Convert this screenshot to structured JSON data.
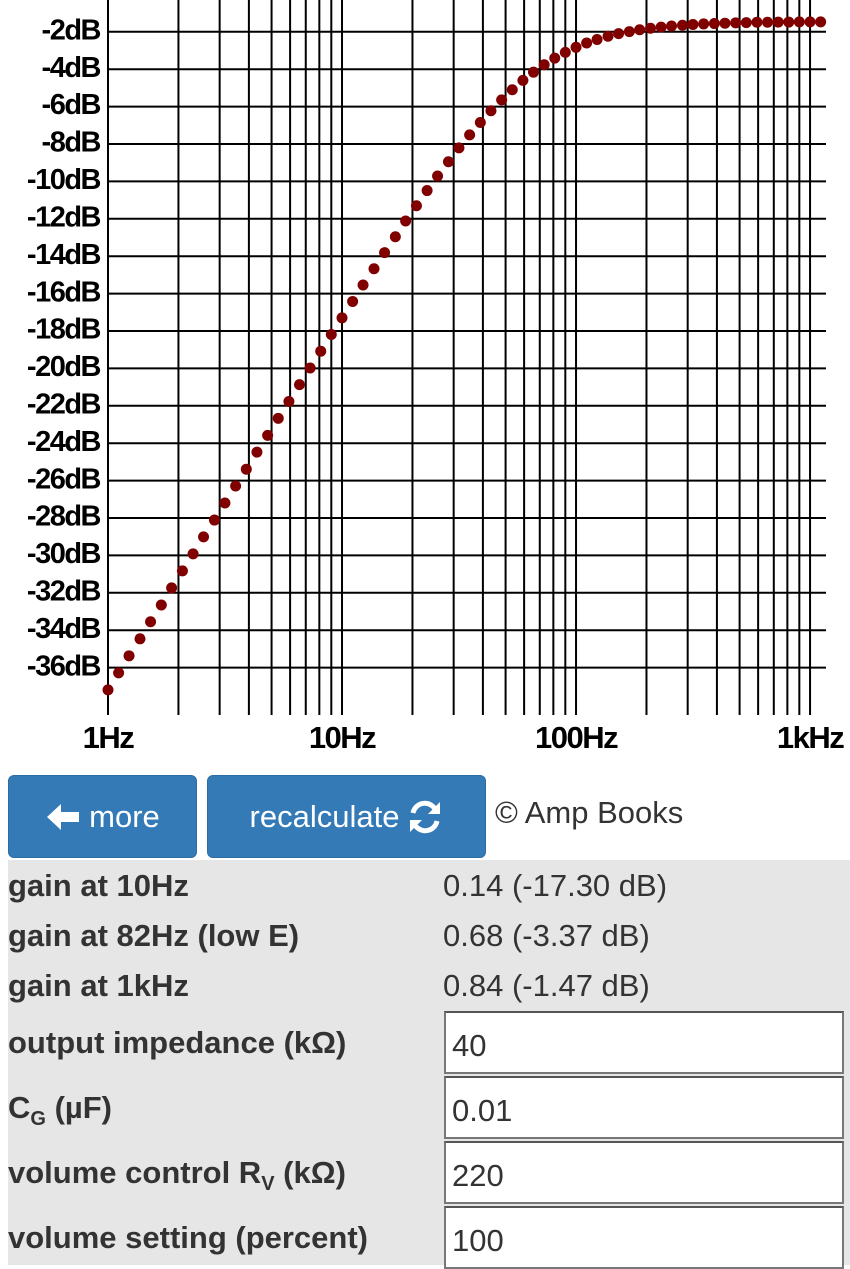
{
  "chart_data": {
    "type": "scatter",
    "log_x": true,
    "grid": true,
    "color": "#800000",
    "xlim": [
      1,
      1170
    ],
    "ylim": [
      -38,
      -0.3
    ],
    "xticks": [
      {
        "value": 1,
        "label": "1Hz"
      },
      {
        "value": 10,
        "label": "10Hz"
      },
      {
        "value": 100,
        "label": "100Hz"
      },
      {
        "value": 1000,
        "label": "1kHz"
      }
    ],
    "xminorticks": [
      2,
      3,
      4,
      5,
      6,
      7,
      8,
      9,
      20,
      30,
      40,
      50,
      60,
      70,
      80,
      90,
      200,
      300,
      400,
      500,
      600,
      700,
      800,
      900
    ],
    "yticks": [
      {
        "value": -2,
        "label": "-2dB"
      },
      {
        "value": -4,
        "label": "-4dB"
      },
      {
        "value": -6,
        "label": "-6dB"
      },
      {
        "value": -8,
        "label": "-8dB"
      },
      {
        "value": -10,
        "label": "-10dB"
      },
      {
        "value": -12,
        "label": "-12dB"
      },
      {
        "value": -14,
        "label": "-14dB"
      },
      {
        "value": -16,
        "label": "-16dB"
      },
      {
        "value": -18,
        "label": "-18dB"
      },
      {
        "value": -20,
        "label": "-20dB"
      },
      {
        "value": -22,
        "label": "-22dB"
      },
      {
        "value": -24,
        "label": "-24dB"
      },
      {
        "value": -26,
        "label": "-26dB"
      },
      {
        "value": -28,
        "label": "-28dB"
      },
      {
        "value": -30,
        "label": "-30dB"
      },
      {
        "value": -32,
        "label": "-32dB"
      },
      {
        "value": -34,
        "label": "-34dB"
      },
      {
        "value": -36,
        "label": "-36dB"
      }
    ],
    "x": [
      1,
      1.11,
      1.23,
      1.37,
      1.52,
      1.69,
      1.87,
      2.08,
      2.31,
      2.56,
      2.85,
      3.16,
      3.51,
      3.9,
      4.33,
      4.81,
      5.34,
      5.93,
      6.58,
      7.31,
      8.11,
      9,
      10,
      11.1,
      12.3,
      13.7,
      15.2,
      16.9,
      18.7,
      20.8,
      23.1,
      25.6,
      28.5,
      31.6,
      35.1,
      39,
      43.3,
      48.1,
      53.4,
      59.3,
      65.8,
      73.1,
      81.1,
      90,
      100,
      111,
      123,
      137,
      152,
      169,
      187,
      208,
      231,
      256,
      285,
      316,
      351,
      390,
      433,
      481,
      534,
      593,
      658,
      731,
      811,
      900,
      1000,
      1110
    ],
    "values": [
      -37.19,
      -36.28,
      -35.37,
      -34.46,
      -33.55,
      -32.65,
      -31.74,
      -30.83,
      -29.92,
      -29.01,
      -28.11,
      -27.2,
      -26.29,
      -25.39,
      -24.48,
      -23.58,
      -22.67,
      -21.77,
      -20.87,
      -19.98,
      -19.08,
      -18.19,
      -17.3,
      -16.42,
      -15.54,
      -14.67,
      -13.81,
      -12.96,
      -12.12,
      -11.3,
      -10.49,
      -9.71,
      -8.95,
      -8.21,
      -7.51,
      -6.85,
      -6.22,
      -5.64,
      -5.1,
      -4.6,
      -4.16,
      -3.76,
      -3.41,
      -3.1,
      -2.83,
      -2.6,
      -2.41,
      -2.24,
      -2.1,
      -1.99,
      -1.89,
      -1.81,
      -1.75,
      -1.69,
      -1.65,
      -1.61,
      -1.58,
      -1.56,
      -1.54,
      -1.52,
      -1.51,
      -1.49,
      -1.49,
      -1.48,
      -1.48,
      -1.47,
      -1.47,
      -1.47
    ]
  },
  "buttons": [
    "more",
    "recalculate"
  ],
  "copyright": "© Amp Books",
  "results": [
    {
      "label": "gain at 10Hz",
      "value": "0.14 (-17.30 dB)"
    },
    {
      "label": "gain at 82Hz (low E)",
      "value": "0.68 (-3.37 dB)"
    },
    {
      "label": "gain at 1kHz",
      "value": "0.84 (-1.47 dB)"
    }
  ],
  "inputs": [
    {
      "label": [
        "output impedance (kΩ)"
      ],
      "value": "40"
    },
    {
      "label": [
        "C",
        "G",
        " (µF)"
      ],
      "value": "0.01"
    },
    {
      "label": [
        "volume control R",
        "V",
        " (kΩ)"
      ],
      "value": "220"
    },
    {
      "label": [
        "volume setting (percent)"
      ],
      "value": "100"
    }
  ]
}
